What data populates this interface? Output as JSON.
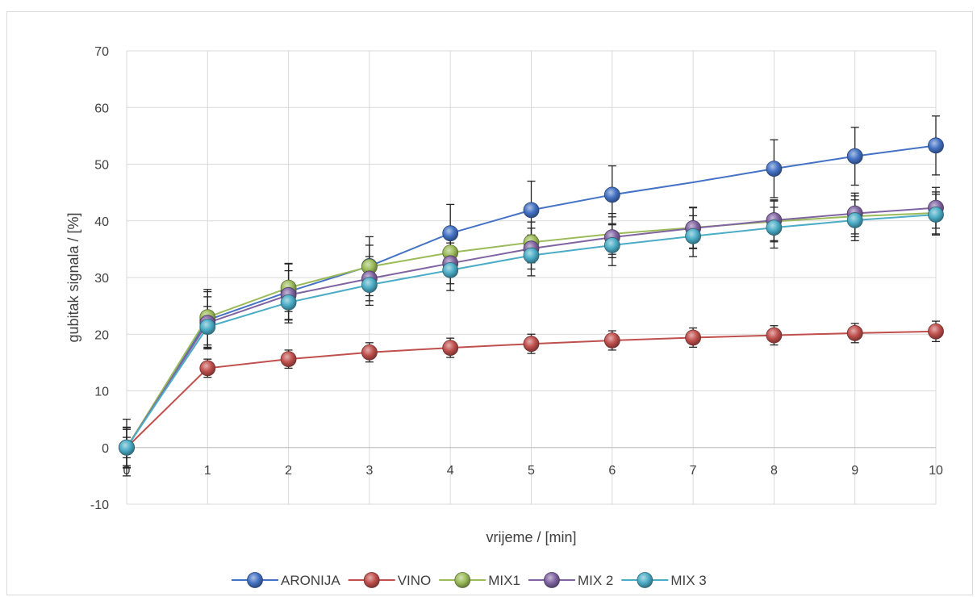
{
  "chart_data": {
    "type": "line",
    "title": "",
    "xlabel": "vrijeme / [min]",
    "ylabel": "gubitak signala / [%]",
    "xlim": [
      0,
      10
    ],
    "ylim": [
      -10,
      70
    ],
    "x_ticks": [
      "0",
      "1",
      "2",
      "3",
      "4",
      "5",
      "6",
      "7",
      "8",
      "9",
      "10"
    ],
    "y_ticks": [
      "-10",
      "0",
      "10",
      "20",
      "30",
      "40",
      "50",
      "60",
      "70"
    ],
    "grid": true,
    "legend_position": "bottom",
    "x": [
      0,
      1,
      2,
      3,
      4,
      5,
      6,
      7,
      8,
      9,
      10
    ],
    "series": [
      {
        "name": "ARONIJA",
        "color": "#4472c4",
        "values": [
          0,
          22.5,
          27.5,
          32,
          37.8,
          41.9,
          44.6,
          46.8,
          49.2,
          51.4,
          53.3
        ],
        "error": [
          5,
          5,
          5,
          5.2,
          5.1,
          5.1,
          5.1,
          null,
          5.1,
          5.1,
          5.2
        ],
        "markers": [
          true,
          true,
          true,
          true,
          true,
          true,
          true,
          false,
          true,
          true,
          true
        ]
      },
      {
        "name": "VINO",
        "color": "#c0504d",
        "values": [
          0,
          14,
          15.6,
          16.8,
          17.6,
          18.3,
          18.9,
          19.4,
          19.8,
          20.2,
          20.5
        ],
        "error": [
          1.8,
          1.6,
          1.6,
          1.7,
          1.7,
          1.7,
          1.7,
          1.7,
          1.7,
          1.7,
          1.8
        ],
        "markers": [
          true,
          true,
          true,
          true,
          true,
          true,
          true,
          true,
          true,
          true,
          true
        ]
      },
      {
        "name": "MIX1",
        "color": "#9bbb59",
        "values": [
          0,
          23,
          28.2,
          31.9,
          34.4,
          36.2,
          37.7,
          38.8,
          39.9,
          40.8,
          41.4
        ],
        "error": [
          3.5,
          4.9,
          4.2,
          3.8,
          3.7,
          3.6,
          3.6,
          3.6,
          3.6,
          3.6,
          3.7
        ],
        "markers": [
          true,
          true,
          true,
          true,
          true,
          true,
          false,
          false,
          false,
          false,
          false
        ]
      },
      {
        "name": "MIX 2",
        "color": "#8064a2",
        "values": [
          0,
          22,
          26.9,
          29.8,
          32.5,
          35.1,
          37.1,
          38.7,
          40.1,
          41.3,
          42.3
        ],
        "error": [
          3.6,
          4.6,
          4.3,
          3.9,
          3.6,
          3.6,
          3.6,
          3.6,
          3.6,
          3.6,
          3.6
        ],
        "markers": [
          true,
          true,
          true,
          true,
          true,
          true,
          true,
          true,
          true,
          true,
          true
        ]
      },
      {
        "name": "MIX 3",
        "color": "#4bacc6",
        "values": [
          0,
          21.3,
          25.6,
          28.7,
          31.3,
          33.9,
          35.7,
          37.3,
          38.8,
          40.1,
          41.1
        ],
        "error": [
          3.2,
          3.6,
          3.6,
          3.6,
          3.6,
          3.6,
          3.6,
          3.6,
          3.6,
          3.6,
          3.6
        ],
        "markers": [
          true,
          true,
          true,
          true,
          true,
          true,
          true,
          true,
          true,
          true,
          true
        ]
      }
    ]
  }
}
